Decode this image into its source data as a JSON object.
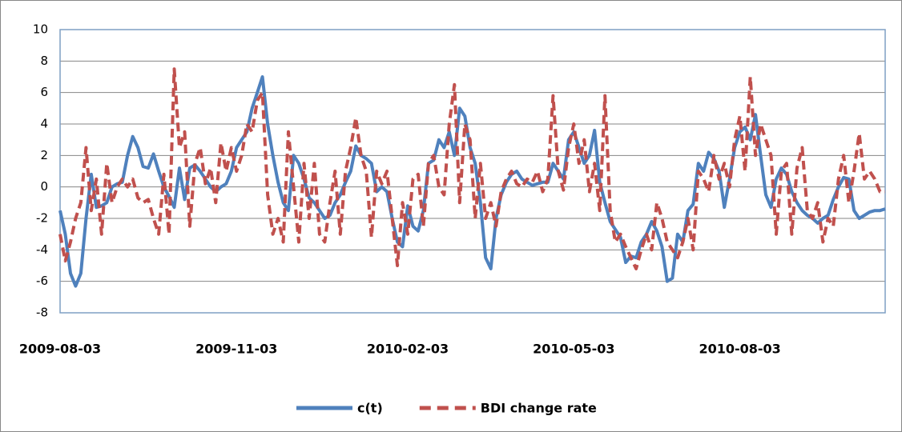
{
  "chart_data": {
    "type": "line",
    "categories": [
      "2009-08-03",
      null,
      null,
      null,
      null,
      null,
      null,
      null,
      null,
      null,
      null,
      null,
      null,
      null,
      null,
      null,
      null,
      null,
      null,
      null,
      null,
      null,
      null,
      null,
      null,
      null,
      null,
      null,
      null,
      null,
      null,
      null,
      null,
      null,
      "2009-11-03",
      null,
      null,
      null,
      null,
      null,
      null,
      null,
      null,
      null,
      null,
      null,
      null,
      null,
      null,
      null,
      null,
      null,
      null,
      null,
      null,
      null,
      null,
      null,
      null,
      null,
      null,
      null,
      null,
      null,
      null,
      null,
      null,
      "2010-02-03",
      null,
      null,
      null,
      null,
      null,
      null,
      null,
      null,
      null,
      null,
      null,
      null,
      null,
      null,
      null,
      null,
      null,
      null,
      null,
      null,
      null,
      null,
      null,
      null,
      null,
      null,
      null,
      null,
      null,
      null,
      null,
      "2010-05-03",
      null,
      null,
      null,
      null,
      null,
      null,
      null,
      null,
      null,
      null,
      null,
      null,
      null,
      null,
      null,
      null,
      null,
      null,
      null,
      null,
      null,
      null,
      null,
      null,
      null,
      null,
      null,
      null,
      null,
      null,
      null,
      "2010-08-03",
      null,
      null,
      null,
      null,
      null,
      null,
      null,
      null,
      null,
      null,
      null,
      null,
      null,
      null,
      null,
      null,
      null,
      null,
      null,
      null,
      null,
      null,
      null,
      null,
      null,
      null,
      null,
      null
    ],
    "series": [
      {
        "name": "c(t)",
        "color": "#4f81bd",
        "dashed": false,
        "values": [
          -1.5,
          -3,
          -5.5,
          -6.3,
          -5.5,
          -2,
          0.8,
          -1.3,
          -1.2,
          -1,
          0,
          0.2,
          0.3,
          2,
          3.2,
          2.5,
          1.3,
          1.2,
          2.1,
          1,
          0,
          -0.6,
          -1.3,
          1.2,
          -0.8,
          1.2,
          1.4,
          1,
          0.5,
          0,
          -0.3,
          0,
          0.2,
          1,
          2.5,
          3,
          3.5,
          5,
          6,
          7,
          4,
          2,
          0.3,
          -1,
          -1.5,
          2,
          1.5,
          0.5,
          -0.7,
          -1,
          -1.5,
          -2,
          -1.8,
          -1,
          -0.5,
          0.3,
          1,
          2.6,
          2,
          1.8,
          1.5,
          -0.3,
          0,
          -0.3,
          -2,
          -3.5,
          -3.8,
          -1.2,
          -2.5,
          -2.8,
          -1.5,
          1.5,
          1.7,
          3,
          2.5,
          3.5,
          2,
          5,
          4.5,
          2.5,
          1.5,
          -1,
          -4.5,
          -5.2,
          -2,
          -0.5,
          0.3,
          0.8,
          1,
          0.5,
          0.3,
          0.1,
          0.2,
          0.3,
          0.3,
          1.5,
          1,
          0.5,
          3,
          3.5,
          2.5,
          1.5,
          2,
          3.6,
          0.3,
          -1,
          -2.2,
          -2.7,
          -3.2,
          -4.8,
          -4.4,
          -4.5,
          -3.5,
          -3,
          -2.2,
          -2.8,
          -3.8,
          -6,
          -5.8,
          -3,
          -3.5,
          -1.5,
          -1.1,
          1.5,
          1,
          2.2,
          1.8,
          1,
          -1.3,
          0.5,
          2.5,
          3.5,
          3.8,
          3,
          4.6,
          2,
          -0.5,
          -1.3,
          0.5,
          1.2,
          0.8,
          -0.3,
          -1,
          -1.5,
          -1.8,
          -2,
          -2.3,
          -2,
          -1.8,
          -0.8,
          0,
          0.6,
          0.5,
          -1.5,
          -2,
          -1.8,
          -1.6,
          -1.5,
          -1.5,
          -1.4
        ]
      },
      {
        "name": "BDI change rate",
        "color": "#c0504d",
        "dashed": true,
        "values": [
          -3,
          -4.7,
          -3.5,
          -2,
          -1,
          2.5,
          -1.5,
          0.5,
          -3,
          1.5,
          -1,
          0,
          0.5,
          0,
          0.5,
          -0.7,
          -1,
          -0.8,
          -2,
          -3,
          0.8,
          -3,
          7.5,
          2.5,
          3.5,
          -2.5,
          1.5,
          2.5,
          0.2,
          1.2,
          -1,
          2.8,
          1,
          2.5,
          1,
          2,
          4,
          3.5,
          5.5,
          6,
          -0.5,
          -3,
          -2,
          -3.5,
          3.5,
          0,
          -3.5,
          1.5,
          -2,
          1.5,
          -3,
          -3.5,
          -1,
          1,
          -3,
          1,
          2.5,
          4.4,
          2,
          1,
          -3.2,
          1,
          0.2,
          1,
          -2,
          -5,
          -1,
          -3,
          0.5,
          0.8,
          -2.5,
          1.5,
          2,
          0,
          -0.5,
          4,
          6.5,
          -1,
          4,
          3,
          -2,
          1.5,
          -2,
          -1,
          -2.5,
          -0.3,
          0.5,
          1,
          0.2,
          0,
          0.5,
          0.3,
          1,
          -0.3,
          0.5,
          5.8,
          1,
          -0.2,
          2.5,
          4,
          1.5,
          3,
          -0.3,
          1.5,
          -1.5,
          5.8,
          -1.5,
          -3.5,
          -3,
          -3.8,
          -4.5,
          -5.2,
          -4,
          -3,
          -4,
          -1,
          -2,
          -3.5,
          -4,
          -4.5,
          -3.5,
          -2,
          -4,
          1,
          0.5,
          -0.3,
          2,
          0.5,
          1.5,
          0,
          3,
          4.5,
          1,
          7,
          2,
          4,
          3,
          2,
          -3,
          1,
          1.5,
          -3,
          1.2,
          2.5,
          -1.5,
          -2,
          -1,
          -3.5,
          -2,
          -2.5,
          0.5,
          2,
          -1,
          1,
          3.4,
          0.5,
          1,
          0.5,
          -0.3,
          -0.3
        ]
      }
    ],
    "ylim": [
      -8,
      10
    ],
    "yticks": [
      -8,
      -6,
      -4,
      -2,
      0,
      2,
      4,
      6,
      8,
      10
    ],
    "grid": true,
    "legend": "bottom"
  }
}
